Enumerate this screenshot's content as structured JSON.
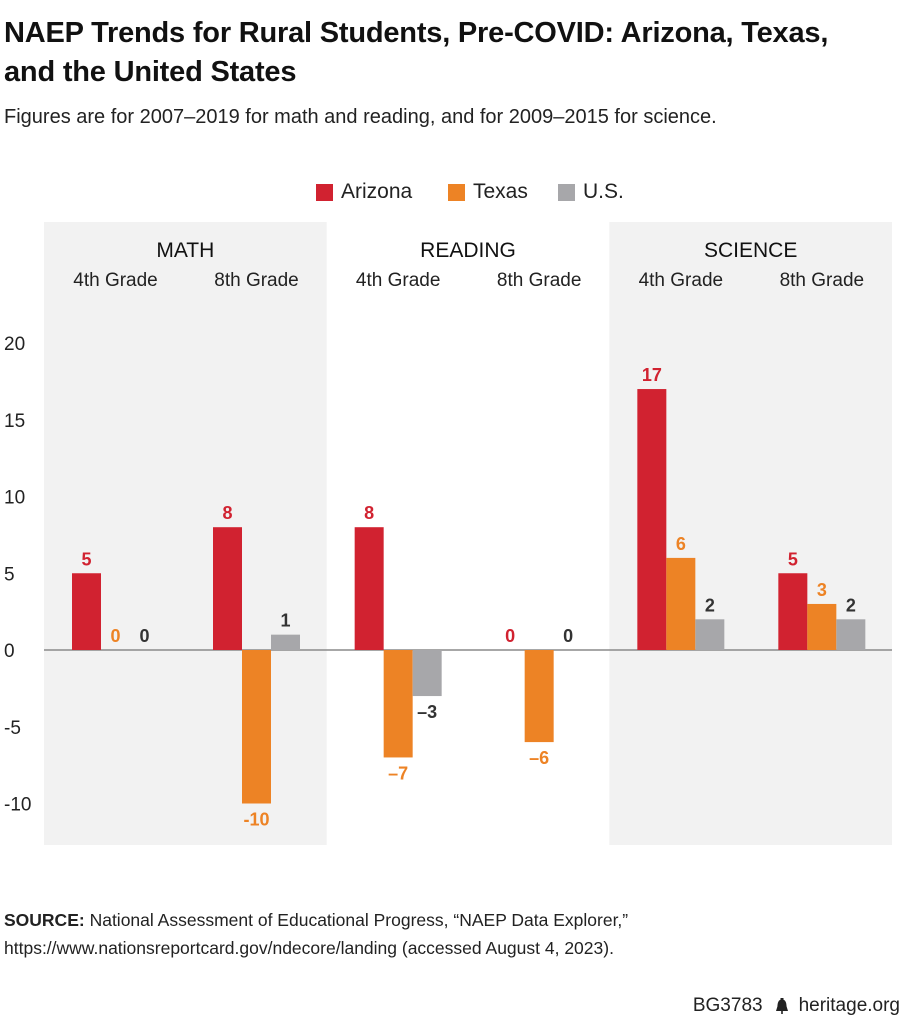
{
  "title": "NAEP Trends for Rural Students, Pre-COVID: Arizona, Texas, and the United States",
  "subtitle": "Figures are for 2007–2019 for math and reading, and for 2009–2015 for science.",
  "source": {
    "label": "SOURCE:",
    "text": "National Assessment of Educational Progress, “NAEP Data Explorer,” https://www.nationsreportcard.gov/ndecore/landing (accessed August 4, 2023)."
  },
  "footer": {
    "code": "BG3783",
    "site": "heritage.org",
    "icon": "liberty-bell-icon"
  },
  "colors": {
    "Arizona": "#d12230",
    "Texas": "#ed8325",
    "U.S.": "#a7a7aa",
    "panel_shade": "#f2f2f2"
  },
  "chart_data": {
    "type": "bar",
    "ylim": [
      -12,
      20
    ],
    "yticks": [
      20,
      15,
      10,
      5,
      0,
      -5,
      -10
    ],
    "legend": [
      "Arizona",
      "Texas",
      "U.S."
    ],
    "legend_position": "top-center",
    "grid": false,
    "subjects": [
      {
        "name": "MATH",
        "shaded": true,
        "grades": [
          {
            "label": "4th Grade",
            "values": [
              5,
              0,
              0
            ],
            "labels": [
              "5",
              "0",
              "0"
            ]
          },
          {
            "label": "8th Grade",
            "values": [
              8,
              -10,
              1
            ],
            "labels": [
              "8",
              "-10",
              "1"
            ]
          }
        ]
      },
      {
        "name": "READING",
        "shaded": false,
        "grades": [
          {
            "label": "4th Grade",
            "values": [
              8,
              -7,
              -3
            ],
            "labels": [
              "8",
              "–7",
              "–3"
            ]
          },
          {
            "label": "8th Grade",
            "values": [
              0,
              -6,
              0
            ],
            "labels": [
              "0",
              "–6",
              "0"
            ]
          }
        ]
      },
      {
        "name": "SCIENCE",
        "shaded": true,
        "grades": [
          {
            "label": "4th Grade",
            "values": [
              17,
              6,
              2
            ],
            "labels": [
              "17",
              "6",
              "2"
            ]
          },
          {
            "label": "8th Grade",
            "values": [
              5,
              3,
              2
            ],
            "labels": [
              "5",
              "3",
              "2"
            ]
          }
        ]
      }
    ]
  }
}
